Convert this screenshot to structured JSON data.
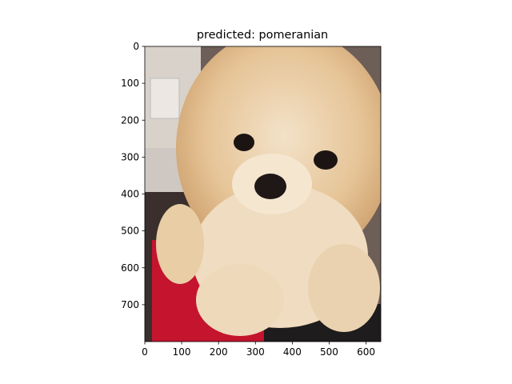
{
  "chart_data": {
    "type": "image",
    "title": "predicted: pomeranian",
    "xlim": [
      0,
      640
    ],
    "xticks": [
      0,
      100,
      200,
      300,
      400,
      500,
      600
    ],
    "ylim": [
      800,
      0
    ],
    "yticks": [
      0,
      100,
      200,
      300,
      400,
      500,
      600,
      700
    ]
  }
}
